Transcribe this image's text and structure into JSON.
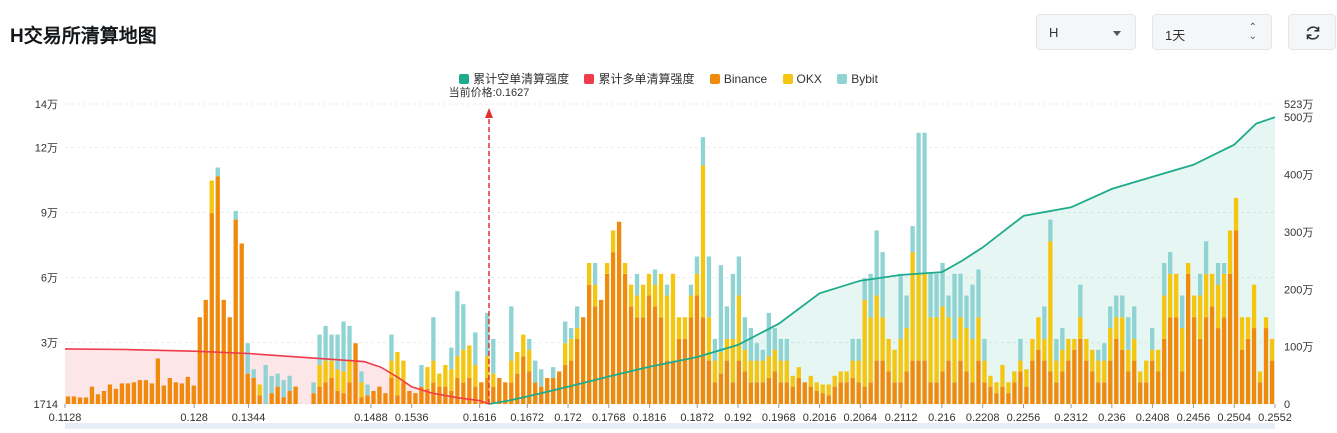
{
  "header": {
    "title": "H交易所清算地图",
    "symbol_select": "H",
    "period_select": "1天"
  },
  "colors": {
    "short_cum": "#1eab8c",
    "long_cum": "#f03b4b",
    "binance": "#f08a0d",
    "okx": "#f5c60f",
    "bybit": "#8fd3d3"
  },
  "legend": [
    {
      "label": "累计空单清算强度",
      "color": "#1eab8c"
    },
    {
      "label": "累计多单清算强度",
      "color": "#f03b4b"
    },
    {
      "label": "Binance",
      "color": "#f08a0d"
    },
    {
      "label": "OKX",
      "color": "#f5c60f"
    },
    {
      "label": "Bybit",
      "color": "#8fd3d3"
    }
  ],
  "chart_data": {
    "type": "bar",
    "current_price_label": "当前价格:0.1627",
    "current_price": 0.1627,
    "x_range": [
      0.1128,
      0.2552
    ],
    "x_ticks": [
      "0.1128",
      "0.128",
      "0.1344",
      "0.1488",
      "0.1536",
      "0.1616",
      "0.1672",
      "0.172",
      "0.1768",
      "0.1816",
      "0.1872",
      "0.192",
      "0.1968",
      "0.2016",
      "0.2064",
      "0.2112",
      "0.216",
      "0.2208",
      "0.2256",
      "0.2312",
      "0.236",
      "0.2408",
      "0.2456",
      "0.2504",
      "0.2552"
    ],
    "y_left_ticks": [
      "1714",
      "3万",
      "6万",
      "9万",
      "12万",
      "14万"
    ],
    "y_left_values": [
      1714,
      30000,
      60000,
      90000,
      120000,
      140000
    ],
    "y_left_range": [
      1714,
      140000
    ],
    "y_right_ticks": [
      "0",
      "100万",
      "200万",
      "300万",
      "400万",
      "500万",
      "523万"
    ],
    "y_right_values": [
      0,
      1000000,
      2000000,
      3000000,
      4000000,
      5000000,
      5230000
    ],
    "y_right_range": [
      0,
      5230000
    ],
    "stack_order": [
      "Binance",
      "OKX",
      "Bybit"
    ],
    "bars": [
      [
        3500,
        0,
        0
      ],
      [
        3500,
        0,
        0
      ],
      [
        3000,
        0,
        0
      ],
      [
        3000,
        0,
        0
      ],
      [
        8000,
        0,
        0
      ],
      [
        4500,
        0,
        0
      ],
      [
        6000,
        0,
        0
      ],
      [
        9000,
        0,
        0
      ],
      [
        7000,
        0,
        0
      ],
      [
        9500,
        0,
        0
      ],
      [
        9500,
        0,
        0
      ],
      [
        10000,
        0,
        0
      ],
      [
        11000,
        0,
        0
      ],
      [
        11000,
        0,
        0
      ],
      [
        9500,
        0,
        0
      ],
      [
        21000,
        0,
        0
      ],
      [
        8500,
        0,
        0
      ],
      [
        12000,
        0,
        0
      ],
      [
        10000,
        0,
        0
      ],
      [
        9500,
        0,
        0
      ],
      [
        12500,
        0,
        0
      ],
      [
        8500,
        0,
        0
      ],
      [
        40000,
        0,
        0
      ],
      [
        48000,
        0,
        0
      ],
      [
        88000,
        15000,
        0
      ],
      [
        105000,
        0,
        4000
      ],
      [
        48000,
        0,
        0
      ],
      [
        40000,
        0,
        0
      ],
      [
        85000,
        0,
        4000
      ],
      [
        74000,
        0,
        0
      ],
      [
        14000,
        0,
        14000
      ],
      [
        12000,
        0,
        4000
      ],
      [
        4000,
        5000,
        0
      ],
      [
        0,
        0,
        18000
      ],
      [
        5000,
        0,
        8000
      ],
      [
        8000,
        0,
        6000
      ],
      [
        3000,
        0,
        8000
      ],
      [
        6000,
        0,
        7000
      ],
      [
        8000,
        0,
        0
      ],
      [
        0,
        0,
        0
      ],
      [
        0,
        0,
        0
      ],
      [
        5000,
        0,
        5000
      ],
      [
        8000,
        10000,
        14000
      ],
      [
        10000,
        10000,
        16000
      ],
      [
        12000,
        8000,
        12000
      ],
      [
        6000,
        10000,
        16000
      ],
      [
        5000,
        10000,
        23000
      ],
      [
        10000,
        10000,
        16000
      ],
      [
        28000,
        0,
        0
      ],
      [
        3000,
        7000,
        5000
      ],
      [
        4000,
        0,
        5000
      ],
      [
        6000,
        0,
        0
      ],
      [
        8000,
        0,
        0
      ],
      [
        5000,
        0,
        0
      ],
      [
        12000,
        8000,
        12000
      ],
      [
        4000,
        20000,
        0
      ],
      [
        10000,
        10000,
        0
      ],
      [
        6000,
        0,
        0
      ],
      [
        5000,
        0,
        0
      ],
      [
        8000,
        0,
        10000
      ],
      [
        7000,
        10000,
        0
      ],
      [
        10000,
        10000,
        20000
      ],
      [
        8000,
        6000,
        0
      ],
      [
        8000,
        10000,
        0
      ],
      [
        6000,
        10000,
        10000
      ],
      [
        12000,
        10000,
        30000
      ],
      [
        10000,
        15000,
        21000
      ],
      [
        12000,
        15000,
        0
      ],
      [
        8000,
        10000,
        15000
      ],
      [
        10000,
        0,
        0
      ],
      [
        12000,
        10000,
        20000
      ],
      [
        8000,
        6000,
        16000
      ],
      [
        12000,
        0,
        0
      ],
      [
        10000,
        0,
        0
      ],
      [
        10000,
        10000,
        25000
      ],
      [
        14000,
        10000,
        0
      ],
      [
        22000,
        10000,
        0
      ],
      [
        15000,
        10000,
        5000
      ],
      [
        10000,
        0,
        10000
      ],
      [
        8000,
        0,
        8000
      ],
      [
        12000,
        0,
        0
      ],
      [
        12000,
        0,
        5000
      ],
      [
        15000,
        0,
        0
      ],
      [
        18000,
        10000,
        10000
      ],
      [
        20000,
        10000,
        5000
      ],
      [
        30000,
        5000,
        10000
      ],
      [
        40000,
        0,
        0
      ],
      [
        55000,
        10000,
        0
      ],
      [
        45000,
        10000,
        10000
      ],
      [
        48000,
        0,
        0
      ],
      [
        60000,
        5000,
        0
      ],
      [
        70000,
        10000,
        0
      ],
      [
        84000,
        0,
        0
      ],
      [
        60000,
        5000,
        0
      ],
      [
        45000,
        10000,
        0
      ],
      [
        40000,
        10000,
        10000
      ],
      [
        40000,
        15000,
        0
      ],
      [
        50000,
        10000,
        0
      ],
      [
        45000,
        10000,
        7000
      ],
      [
        40000,
        20000,
        0
      ],
      [
        20000,
        30000,
        5000
      ],
      [
        20000,
        40000,
        0
      ],
      [
        30000,
        10000,
        0
      ],
      [
        30000,
        10000,
        0
      ],
      [
        40000,
        10000,
        5000
      ],
      [
        50000,
        10000,
        8000
      ],
      [
        40000,
        70000,
        13000
      ],
      [
        20000,
        20000,
        28000
      ],
      [
        10000,
        10000,
        10000
      ],
      [
        14000,
        10000,
        40000
      ],
      [
        20000,
        10000,
        15000
      ],
      [
        10000,
        20000,
        30000
      ],
      [
        20000,
        30000,
        18000
      ],
      [
        15000,
        10000,
        15000
      ],
      [
        10000,
        10000,
        15000
      ],
      [
        10000,
        10000,
        8000
      ],
      [
        10000,
        10000,
        5000
      ],
      [
        12000,
        10000,
        20000
      ],
      [
        15000,
        10000,
        10000
      ],
      [
        10000,
        10000,
        10000
      ],
      [
        10000,
        10000,
        10000
      ],
      [
        8000,
        5000,
        0
      ],
      [
        12000,
        5000,
        0
      ],
      [
        10000,
        0,
        0
      ],
      [
        8000,
        5000,
        0
      ],
      [
        6000,
        4000,
        0
      ],
      [
        5000,
        4000,
        0
      ],
      [
        4000,
        5000,
        0
      ],
      [
        8000,
        5000,
        0
      ],
      [
        10000,
        5000,
        0
      ],
      [
        10000,
        5000,
        0
      ],
      [
        12000,
        8000,
        10000
      ],
      [
        10000,
        10000,
        10000
      ],
      [
        8000,
        40000,
        10000
      ],
      [
        10000,
        30000,
        20000
      ],
      [
        20000,
        30000,
        30000
      ],
      [
        20000,
        20000,
        30000
      ],
      [
        15000,
        15000,
        0
      ],
      [
        10000,
        15000,
        0
      ],
      [
        10000,
        20000,
        30000
      ],
      [
        15000,
        20000,
        15000
      ],
      [
        20000,
        50000,
        12000
      ],
      [
        20000,
        40000,
        65000
      ],
      [
        20000,
        40000,
        65000
      ],
      [
        10000,
        30000,
        20000
      ],
      [
        10000,
        30000,
        20000
      ],
      [
        15000,
        30000,
        20000
      ],
      [
        20000,
        20000,
        10000
      ],
      [
        10000,
        20000,
        30000
      ],
      [
        20000,
        20000,
        20000
      ],
      [
        15000,
        20000,
        15000
      ],
      [
        10000,
        20000,
        25000
      ],
      [
        20000,
        20000,
        22000
      ],
      [
        10000,
        10000,
        10000
      ],
      [
        8000,
        5000,
        0
      ],
      [
        5000,
        5000,
        0
      ],
      [
        8000,
        10000,
        0
      ],
      [
        5000,
        5000,
        0
      ],
      [
        10000,
        5000,
        0
      ],
      [
        15000,
        5000,
        10000
      ],
      [
        8000,
        8000,
        0
      ],
      [
        20000,
        10000,
        0
      ],
      [
        25000,
        15000,
        0
      ],
      [
        20000,
        10000,
        15000
      ],
      [
        15000,
        60000,
        10000
      ],
      [
        10000,
        10000,
        10000
      ],
      [
        15000,
        10000,
        10000
      ],
      [
        20000,
        10000,
        0
      ],
      [
        25000,
        5000,
        0
      ],
      [
        30000,
        10000,
        15000
      ],
      [
        20000,
        10000,
        0
      ],
      [
        15000,
        10000,
        0
      ],
      [
        10000,
        10000,
        5000
      ],
      [
        10000,
        10000,
        8000
      ],
      [
        20000,
        15000,
        10000
      ],
      [
        30000,
        10000,
        10000
      ],
      [
        25000,
        15000,
        10000
      ],
      [
        15000,
        10000,
        15000
      ],
      [
        20000,
        10000,
        15000
      ],
      [
        10000,
        5000,
        0
      ],
      [
        10000,
        10000,
        0
      ],
      [
        20000,
        5000,
        10000
      ],
      [
        15000,
        10000,
        0
      ],
      [
        30000,
        20000,
        15000
      ],
      [
        40000,
        20000,
        10000
      ],
      [
        40000,
        20000,
        0
      ],
      [
        15000,
        20000,
        15000
      ],
      [
        60000,
        5000,
        0
      ],
      [
        40000,
        10000,
        0
      ],
      [
        30000,
        20000,
        10000
      ],
      [
        40000,
        20000,
        15000
      ],
      [
        45000,
        15000,
        0
      ],
      [
        35000,
        20000,
        10000
      ],
      [
        40000,
        20000,
        5000
      ],
      [
        60000,
        20000,
        0
      ],
      [
        80000,
        15000,
        0
      ],
      [
        25000,
        15000,
        0
      ],
      [
        30000,
        10000,
        0
      ],
      [
        35000,
        20000,
        0
      ],
      [
        10000,
        5000,
        0
      ],
      [
        35000,
        5000,
        0
      ],
      [
        20000,
        10000,
        0
      ]
    ],
    "long_cum_curve": [
      [
        0.1128,
        960000
      ],
      [
        0.12,
        950000
      ],
      [
        0.128,
        920000
      ],
      [
        0.1344,
        880000
      ],
      [
        0.142,
        800000
      ],
      [
        0.148,
        740000
      ],
      [
        0.15,
        640000
      ],
      [
        0.152,
        460000
      ],
      [
        0.1536,
        300000
      ],
      [
        0.156,
        190000
      ],
      [
        0.159,
        110000
      ],
      [
        0.1616,
        60000
      ],
      [
        0.1627,
        0
      ]
    ],
    "short_cum_curve": [
      [
        0.1627,
        0
      ],
      [
        0.165,
        60000
      ],
      [
        0.1672,
        130000
      ],
      [
        0.172,
        300000
      ],
      [
        0.1768,
        480000
      ],
      [
        0.1816,
        650000
      ],
      [
        0.1872,
        820000
      ],
      [
        0.192,
        1030000
      ],
      [
        0.1968,
        1400000
      ],
      [
        0.2016,
        1930000
      ],
      [
        0.2064,
        2150000
      ],
      [
        0.2112,
        2250000
      ],
      [
        0.216,
        2300000
      ],
      [
        0.2184,
        2500000
      ],
      [
        0.2208,
        2730000
      ],
      [
        0.2256,
        3280000
      ],
      [
        0.2312,
        3430000
      ],
      [
        0.236,
        3750000
      ],
      [
        0.2408,
        3960000
      ],
      [
        0.2456,
        4170000
      ],
      [
        0.2504,
        4520000
      ],
      [
        0.253,
        4890000
      ],
      [
        0.2552,
        5000000
      ]
    ]
  }
}
